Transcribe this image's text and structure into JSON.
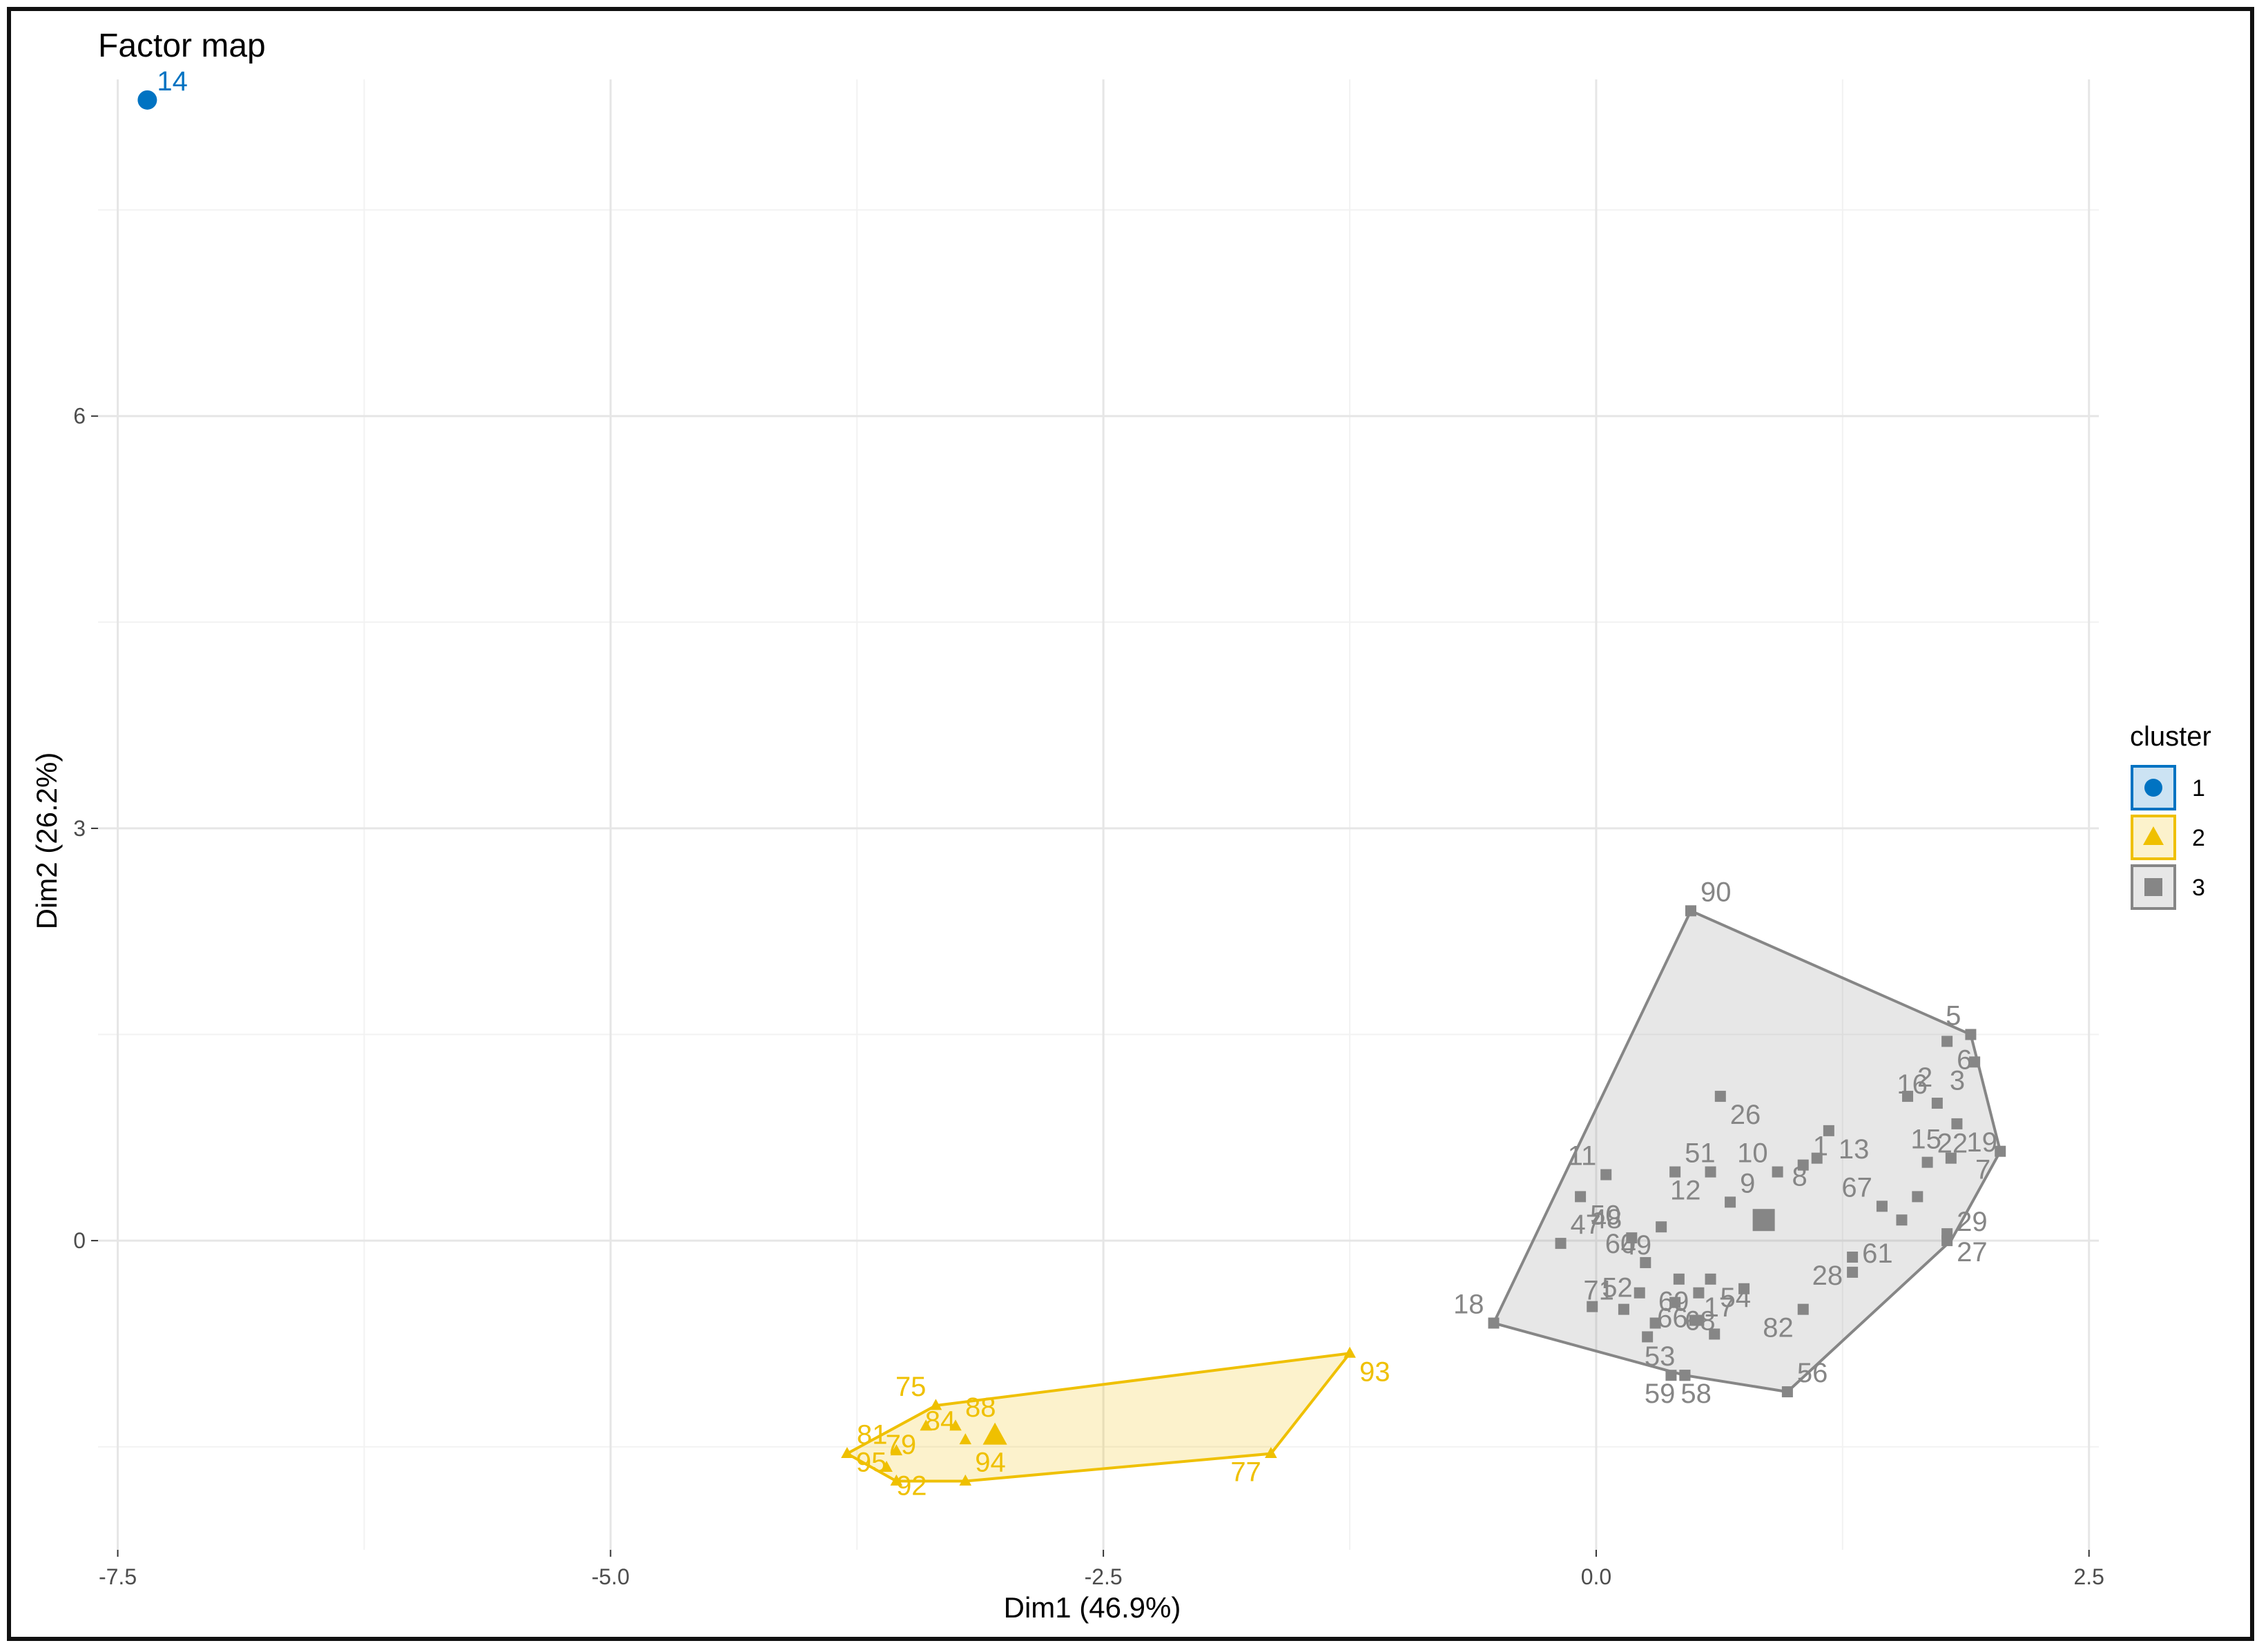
{
  "chart_data": {
    "type": "scatter",
    "title": "Factor map",
    "xlabel": "Dim1 (46.9%)",
    "ylabel": "Dim2 (26.2%)",
    "xlim": [
      -7.6,
      2.55
    ],
    "ylim": [
      -2.25,
      8.45
    ],
    "x_ticks": [
      -7.5,
      -5.0,
      -2.5,
      0.0,
      2.5
    ],
    "x_tick_labels": [
      "-7.5",
      "-5.0",
      "-2.5",
      "0.0",
      "2.5"
    ],
    "y_ticks": [
      0,
      3,
      6
    ],
    "y_tick_labels": [
      "0",
      "3",
      "6"
    ],
    "grid": true,
    "legend": {
      "title": "cluster",
      "placement": "right",
      "entries": [
        {
          "label": "1",
          "color": "#0073C2",
          "shape": "circle"
        },
        {
          "label": "2",
          "color": "#EFC000",
          "shape": "triangle"
        },
        {
          "label": "3",
          "color": "#868686",
          "shape": "square"
        }
      ]
    },
    "clusters": [
      {
        "cluster": "1",
        "color": "#0073C2",
        "hull": [],
        "points": [
          {
            "label": "14",
            "x": -7.35,
            "y": 8.3
          }
        ]
      },
      {
        "cluster": "2",
        "color": "#EFC000",
        "hull": [
          [
            -3.8,
            -1.55
          ],
          [
            -3.35,
            -1.2
          ],
          [
            -1.25,
            -0.82
          ],
          [
            -1.65,
            -1.55
          ],
          [
            -3.2,
            -1.75
          ],
          [
            -3.55,
            -1.75
          ]
        ],
        "center": {
          "x": -3.05,
          "y": -1.42
        },
        "points": [
          {
            "label": "81",
            "x": -3.8,
            "y": -1.55
          },
          {
            "label": "75",
            "x": -3.35,
            "y": -1.2
          },
          {
            "label": "93",
            "x": -1.25,
            "y": -0.82
          },
          {
            "label": "77",
            "x": -1.65,
            "y": -1.55
          },
          {
            "label": "94",
            "x": -3.2,
            "y": -1.75
          },
          {
            "label": "95",
            "x": -3.55,
            "y": -1.75
          },
          {
            "label": "92",
            "x": -3.6,
            "y": -1.65
          },
          {
            "label": "79",
            "x": -3.4,
            "y": -1.35
          },
          {
            "label": "88",
            "x": -3.25,
            "y": -1.35
          },
          {
            "label": "84",
            "x": -3.2,
            "y": -1.45
          },
          {
            "label": "",
            "x": -3.55,
            "y": -1.53
          }
        ]
      },
      {
        "cluster": "3",
        "color": "#868686",
        "hull": [
          [
            0.48,
            2.4
          ],
          [
            1.9,
            1.5
          ],
          [
            2.05,
            0.65
          ],
          [
            1.8,
            0.0
          ],
          [
            0.97,
            -1.1
          ],
          [
            0.45,
            -0.98
          ],
          [
            -0.52,
            -0.6
          ]
        ],
        "center": {
          "x": 0.85,
          "y": 0.15
        },
        "points": [
          {
            "label": "90",
            "x": 0.48,
            "y": 2.4
          },
          {
            "label": "5",
            "x": 1.9,
            "y": 1.5
          },
          {
            "label": "6",
            "x": 1.78,
            "y": 1.45
          },
          {
            "label": "3",
            "x": 1.92,
            "y": 1.3
          },
          {
            "label": "2",
            "x": 1.58,
            "y": 1.05
          },
          {
            "label": "16",
            "x": 1.73,
            "y": 1.0
          },
          {
            "label": "19",
            "x": 1.83,
            "y": 0.85
          },
          {
            "label": "7",
            "x": 2.05,
            "y": 0.65
          },
          {
            "label": "22",
            "x": 1.68,
            "y": 0.57
          },
          {
            "label": "15",
            "x": 1.8,
            "y": 0.6
          },
          {
            "label": "13",
            "x": 1.18,
            "y": 0.8
          },
          {
            "label": "8",
            "x": 1.12,
            "y": 0.6
          },
          {
            "label": "1",
            "x": 1.05,
            "y": 0.55
          },
          {
            "label": "10",
            "x": 0.92,
            "y": 0.5
          },
          {
            "label": "26",
            "x": 0.63,
            "y": 1.05
          },
          {
            "label": "12",
            "x": 0.58,
            "y": 0.5
          },
          {
            "label": "51",
            "x": 0.4,
            "y": 0.5
          },
          {
            "label": "11",
            "x": 0.05,
            "y": 0.48
          },
          {
            "label": "50",
            "x": -0.08,
            "y": 0.32
          },
          {
            "label": "49",
            "x": 0.33,
            "y": 0.1
          },
          {
            "label": "9",
            "x": 0.68,
            "y": 0.28
          },
          {
            "label": "67",
            "x": 1.45,
            "y": 0.25
          },
          {
            "label": "",
            "x": 1.63,
            "y": 0.32
          },
          {
            "label": "",
            "x": 1.55,
            "y": 0.15
          },
          {
            "label": "47",
            "x": -0.18,
            "y": -0.02
          },
          {
            "label": "48",
            "x": 0.18,
            "y": 0.02
          },
          {
            "label": "27",
            "x": 1.78,
            "y": 0.05
          },
          {
            "label": "28",
            "x": 1.3,
            "y": -0.12
          },
          {
            "label": "29",
            "x": 1.78,
            "y": 0.0
          },
          {
            "label": "60",
            "x": 0.25,
            "y": -0.16
          },
          {
            "label": "54",
            "x": 0.58,
            "y": -0.28
          },
          {
            "label": "17",
            "x": 0.75,
            "y": -0.35
          },
          {
            "label": "52",
            "x": -0.02,
            "y": -0.48
          },
          {
            "label": "",
            "x": 0.22,
            "y": -0.38
          },
          {
            "label": "",
            "x": 0.42,
            "y": -0.28
          },
          {
            "label": "",
            "x": 0.52,
            "y": -0.38
          },
          {
            "label": "61",
            "x": 1.3,
            "y": -0.23
          },
          {
            "label": "71",
            "x": 0.14,
            "y": -0.5
          },
          {
            "label": "68",
            "x": 0.4,
            "y": -0.45
          },
          {
            "label": "",
            "x": 0.5,
            "y": -0.58
          },
          {
            "label": "",
            "x": 0.3,
            "y": -0.6
          },
          {
            "label": "69",
            "x": 0.52,
            "y": -0.58
          },
          {
            "label": "",
            "x": 0.6,
            "y": -0.68
          },
          {
            "label": "82",
            "x": 1.05,
            "y": -0.5
          },
          {
            "label": "66",
            "x": 0.26,
            "y": -0.7
          },
          {
            "label": "53",
            "x": 0.45,
            "y": -0.98
          },
          {
            "label": "58",
            "x": 0.38,
            "y": -0.98
          },
          {
            "label": "59",
            "x": 0.45,
            "y": -0.98
          },
          {
            "label": "56",
            "x": 0.97,
            "y": -1.1
          },
          {
            "label": "18",
            "x": -0.52,
            "y": -0.6
          }
        ]
      }
    ]
  }
}
